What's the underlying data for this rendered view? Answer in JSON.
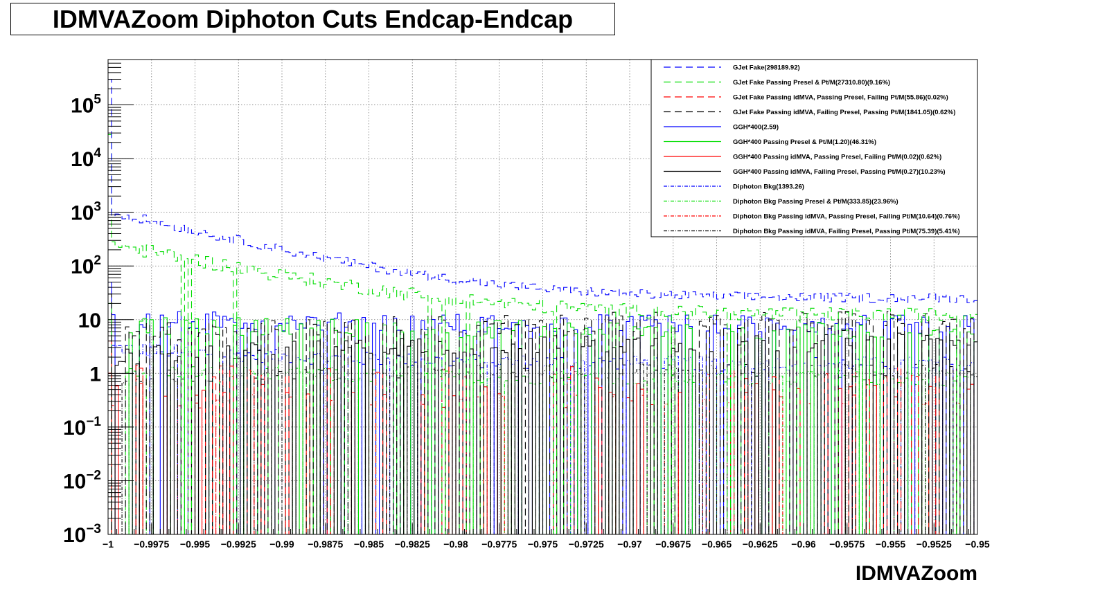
{
  "chart_data": {
    "type": "histogram",
    "title": "IDMVAZoom Diphoton Cuts Endcap-Endcap",
    "xlabel": "IDMVAZoom",
    "ylabel": "",
    "xlim": [
      -1,
      -0.95
    ],
    "ylim": [
      0.001,
      700000
    ],
    "y_scale": "log",
    "grid": true,
    "legend_position": "top-right",
    "x_ticks": [
      {
        "v": -1,
        "label": "−1"
      },
      {
        "v": -0.9975,
        "label": "−0.9975"
      },
      {
        "v": -0.995,
        "label": "−0.995"
      },
      {
        "v": -0.9925,
        "label": "−0.9925"
      },
      {
        "v": -0.99,
        "label": "−0.99"
      },
      {
        "v": -0.9875,
        "label": "−0.9875"
      },
      {
        "v": -0.985,
        "label": "−0.985"
      },
      {
        "v": -0.9825,
        "label": "−0.9825"
      },
      {
        "v": -0.98,
        "label": "−0.98"
      },
      {
        "v": -0.9775,
        "label": "−0.9775"
      },
      {
        "v": -0.975,
        "label": "−0.975"
      },
      {
        "v": -0.9725,
        "label": "−0.9725"
      },
      {
        "v": -0.97,
        "label": "−0.97"
      },
      {
        "v": -0.9675,
        "label": "−0.9675"
      },
      {
        "v": -0.965,
        "label": "−0.965"
      },
      {
        "v": -0.9625,
        "label": "−0.9625"
      },
      {
        "v": -0.96,
        "label": "−0.96"
      },
      {
        "v": -0.9575,
        "label": "−0.9575"
      },
      {
        "v": -0.955,
        "label": "−0.955"
      },
      {
        "v": -0.9525,
        "label": "−0.9525"
      },
      {
        "v": -0.95,
        "label": "−0.95"
      }
    ],
    "y_ticks": [
      {
        "v": 100000,
        "base": "10",
        "exp": "5"
      },
      {
        "v": 10000,
        "base": "10",
        "exp": "4"
      },
      {
        "v": 1000,
        "base": "10",
        "exp": "3"
      },
      {
        "v": 100,
        "base": "10",
        "exp": "2"
      },
      {
        "v": 10,
        "base": "10",
        "exp": ""
      },
      {
        "v": 1,
        "base": "1",
        "exp": ""
      },
      {
        "v": 0.1,
        "base": "10",
        "exp": "−1"
      },
      {
        "v": 0.01,
        "base": "10",
        "exp": "−2"
      },
      {
        "v": 0.001,
        "base": "10",
        "exp": "−3"
      }
    ],
    "series": [
      {
        "name": "GJet Fake(298189.92)",
        "color": "#0000ff",
        "dash": "long",
        "first": 300000,
        "start": 1000,
        "tail": 25,
        "decay": 0.035,
        "noise": 0.2,
        "dropout": 0.0
      },
      {
        "name": "GJet Fake Passing Presel & Pt/M(27310.80)(9.16%)",
        "color": "#00dd00",
        "dash": "long",
        "first": 28000,
        "start": 250,
        "tail": 12,
        "decay": 0.03,
        "noise": 0.3,
        "dropout": 0.05
      },
      {
        "name": "GJet Fake Passing idMVA, Passing Presel, Failing Pt/M(55.86)(0.02%)",
        "color": "#ff0000",
        "dash": "long",
        "first": 4,
        "start": 1.2,
        "tail": 1.0,
        "decay": 0.02,
        "noise": 0.3,
        "dropout": 0.85
      },
      {
        "name": "GJet Fake Passing idMVA, Failing Presel, Passing Pt/M(1841.05)(0.62%)",
        "color": "#000000",
        "dash": "long",
        "first": 30,
        "start": 5,
        "tail": 10,
        "decay": 0.01,
        "noise": 0.45,
        "dropout": 0.55
      },
      {
        "name": "GGH*400(2.59)",
        "color": "#0000ff",
        "dash": "solid",
        "first": 50,
        "start": 10,
        "tail": 8,
        "decay": 0.01,
        "noise": 0.4,
        "dropout": 0.4
      },
      {
        "name": "GGH*400 Passing Presel & Pt/M(1.20)(46.31%)",
        "color": "#00dd00",
        "dash": "solid",
        "first": 20,
        "start": 8,
        "tail": 6,
        "decay": 0.01,
        "noise": 0.4,
        "dropout": 0.6
      },
      {
        "name": "GGH*400 Passing idMVA, Passing Presel, Failing Pt/M(0.02)(0.62%)",
        "color": "#ff0000",
        "dash": "solid",
        "first": 1,
        "start": 0.5,
        "tail": 0.5,
        "decay": 0.01,
        "noise": 0.3,
        "dropout": 0.9
      },
      {
        "name": "GGH*400 Passing idMVA, Failing Presel, Passing Pt/M(0.27)(10.23%)",
        "color": "#000000",
        "dash": "solid",
        "first": 3,
        "start": 2,
        "tail": 4,
        "decay": 0.01,
        "noise": 0.4,
        "dropout": 0.55
      },
      {
        "name": "Diphoton Bkg(1393.26)",
        "color": "#0000ff",
        "dash": "dashdot",
        "first": 40,
        "start": 3,
        "tail": 1.5,
        "decay": 0.02,
        "noise": 0.3,
        "dropout": 0.25
      },
      {
        "name": "Diphoton Bkg Passing Presel & Pt/M(333.85)(23.96%)",
        "color": "#00dd00",
        "dash": "dashdot",
        "first": 10,
        "start": 1.2,
        "tail": 0.8,
        "decay": 0.02,
        "noise": 0.3,
        "dropout": 0.5
      },
      {
        "name": "Diphoton Bkg Passing idMVA, Passing Presel, Failing Pt/M(10.64)(0.76%)",
        "color": "#ff0000",
        "dash": "dashdot",
        "first": 1,
        "start": 0.3,
        "tail": 0.3,
        "decay": 0.01,
        "noise": 0.3,
        "dropout": 0.85
      },
      {
        "name": "Diphoton Bkg Passing idMVA, Failing Presel, Passing Pt/M(75.39)(5.41%)",
        "color": "#000000",
        "dash": "dashdot",
        "first": 2,
        "start": 0.8,
        "tail": 1.2,
        "decay": 0.01,
        "noise": 0.3,
        "dropout": 0.55
      }
    ]
  }
}
